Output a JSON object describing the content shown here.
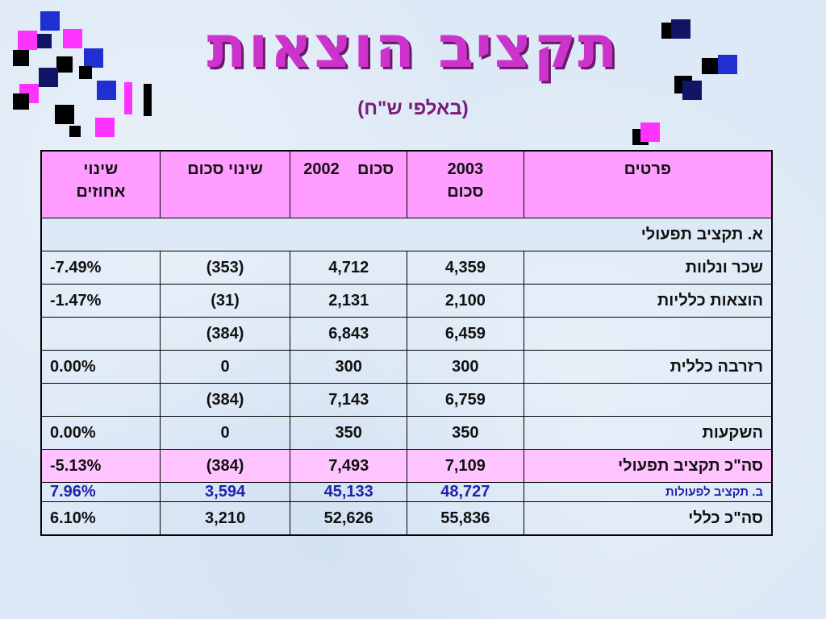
{
  "title": "תקציב הוצאות",
  "subtitle": "(באלפי ש\"ח)",
  "header": {
    "col_items": "פרטים",
    "col_2003_line1": "2003",
    "col_2003_line2": "סכום",
    "col_2002_year": "2002",
    "col_2002_word": "סכום",
    "col_change_amount": "שינוי סכום",
    "col_change_pct_line1": "שינוי",
    "col_change_pct_line2": "אחוזים"
  },
  "section_a": "א.   תקציב תפעולי",
  "rows": [
    {
      "label": "שכר ונלוות",
      "v2003": "4,359",
      "v2002": "4,712",
      "change": "(353)",
      "pct": "-7.49%"
    },
    {
      "label": "הוצאות כלליות",
      "v2003": "2,100",
      "v2002": "2,131",
      "change": "(31)",
      "pct": "-1.47%"
    },
    {
      "label": "",
      "v2003": "6,459",
      "v2002": "6,843",
      "change": "(384)",
      "pct": ""
    },
    {
      "label": "רזרבה כללית",
      "v2003": "300",
      "v2002": "300",
      "change": "0",
      "pct": "0.00%"
    },
    {
      "label": "",
      "v2003": "6,759",
      "v2002": "7,143",
      "change": "(384)",
      "pct": ""
    },
    {
      "label": "השקעות",
      "v2003": "350",
      "v2002": "350",
      "change": "0",
      "pct": "0.00%"
    }
  ],
  "total_operational": {
    "label": "סה\"כ תקציב תפעולי",
    "v2003": "7,109",
    "v2002": "7,493",
    "change": "(384)",
    "pct": "-5.13%"
  },
  "section_b": {
    "label": "ב.  תקציב לפעולות",
    "v2003": "48,727",
    "v2002": "45,133",
    "change": "3,594",
    "pct": "7.96%"
  },
  "grand_total": {
    "label": "סה\"כ כללי",
    "v2003": "55,836",
    "v2002": "52,626",
    "change": "3,210",
    "pct": "6.10%"
  }
}
